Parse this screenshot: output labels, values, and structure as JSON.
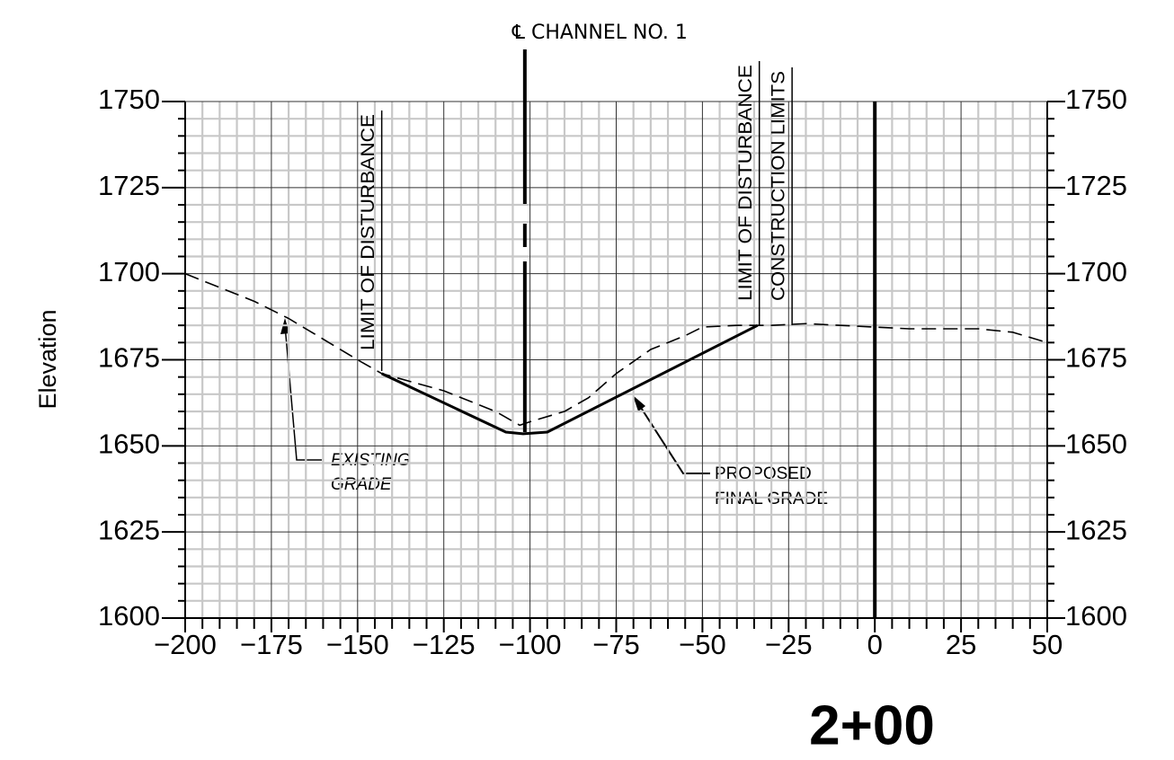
{
  "chart_data": {
    "type": "line",
    "title": "2+00",
    "ylabel": "Elevation",
    "xlim": [
      -200,
      50
    ],
    "ylim": [
      1600,
      1750
    ],
    "xticks": [
      {
        "value": -200,
        "label": "−200"
      },
      {
        "value": -175,
        "label": "−175"
      },
      {
        "value": -150,
        "label": "−150"
      },
      {
        "value": -125,
        "label": "−125"
      },
      {
        "value": -100,
        "label": "−100"
      },
      {
        "value": -75,
        "label": "−75"
      },
      {
        "value": -50,
        "label": "−50"
      },
      {
        "value": -25,
        "label": "−25"
      },
      0,
      25,
      50
    ],
    "yticks": [
      1600,
      1625,
      1650,
      1675,
      1700,
      1725,
      1750
    ],
    "minor_xticks": [
      -195,
      -190,
      -185,
      -180,
      -170,
      -165,
      -160,
      -155,
      -145,
      -140,
      -135,
      -130,
      -120,
      -115,
      -110,
      -105,
      -95,
      -90,
      -85,
      -80,
      -70,
      -65,
      -60,
      -55,
      -45,
      -40,
      -35,
      -30,
      -20,
      -15,
      -10,
      -5,
      5,
      10,
      15,
      20,
      30,
      35,
      40,
      45
    ],
    "minor_yticks": [
      1605,
      1610,
      1615,
      1620,
      1630,
      1635,
      1640,
      1645,
      1655,
      1660,
      1665,
      1670,
      1680,
      1685,
      1690,
      1695,
      1705,
      1710,
      1715,
      1720,
      1730,
      1735,
      1740,
      1745
    ],
    "grid": true,
    "series": [
      {
        "name": "EXISTING GRADE",
        "color": "#000000",
        "dash": true,
        "x": [
          -200,
          -180,
          -170,
          -150,
          -143,
          -125,
          -110,
          -103,
          -100,
          -90,
          -83,
          -75,
          -65,
          -55,
          -50,
          -40,
          -30,
          -20,
          -10,
          0,
          10,
          20,
          30,
          40,
          50
        ],
        "values": [
          1700,
          1692,
          1687,
          1675,
          1671,
          1666,
          1660,
          1656,
          1657,
          1660,
          1664,
          1671,
          1678,
          1682,
          1684.5,
          1685,
          1685,
          1685.5,
          1685,
          1684.5,
          1684,
          1684,
          1684,
          1683,
          1680
        ]
      },
      {
        "name": "PROPOSED FINAL GRADE",
        "color": "#000000",
        "dash": false,
        "x": [
          -143,
          -107,
          -102,
          -95,
          -34
        ],
        "values": [
          1671,
          1654,
          1653.5,
          1654,
          1685
        ]
      }
    ],
    "reference_lines": [
      {
        "x": -143,
        "label": "LIMIT OF DISTURBANCE"
      },
      {
        "x": -101.5,
        "label": "℄ CHANNEL NO. 1"
      },
      {
        "x": -33.5,
        "label": "LIMIT OF DISTURBANCE"
      },
      {
        "x": -24,
        "label": "CONSTRUCTION LIMITS"
      },
      {
        "x": 0
      }
    ],
    "annotations": [
      {
        "lines": [
          "EXISTING",
          "GRADE"
        ]
      },
      {
        "lines": [
          "PROPOSED",
          "FINAL GRADE"
        ]
      }
    ]
  }
}
